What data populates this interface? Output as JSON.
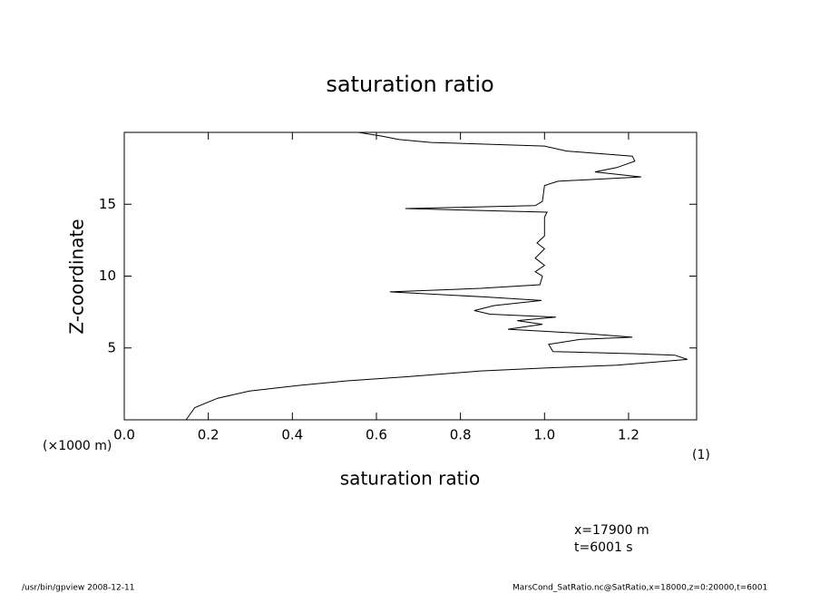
{
  "chart_data": {
    "type": "line",
    "title": "saturation ratio",
    "x_label": "saturation ratio",
    "y_label": "Z-coordinate",
    "y_unit": "(×1000 m)",
    "x_unit": "(1)",
    "annotations": [
      "x=17900 m",
      "t=6001 s"
    ],
    "footer_left": "/usr/bin/gpview   2008-12-11",
    "footer_right": "MarsCond_SatRatio.nc@SatRatio,x=18000,z=0:20000,t=6001",
    "xlim": [
      0,
      1.362
    ],
    "ylim": [
      0,
      20
    ],
    "xticks": [
      {
        "value": 0,
        "label": "0.0"
      },
      0.2,
      0.4,
      0.6,
      0.8,
      {
        "value": 1,
        "label": "1.0"
      },
      1.2
    ],
    "yticks": [
      5,
      10,
      15
    ],
    "series": [
      {
        "color": "#000000",
        "values": [
          0.147,
          0.168,
          0.222,
          0.298,
          0.417,
          0.525,
          0.676,
          0.848,
          1.0,
          1.172,
          1.34,
          1.31,
          1.215,
          1.02,
          1.01,
          1.086,
          1.209,
          1.097,
          0.913,
          0.995,
          0.935,
          1.027,
          0.87,
          0.833,
          0.88,
          0.993,
          0.859,
          0.632,
          0.848,
          0.989,
          0.995,
          0.978,
          1.0,
          0.978,
          1.0,
          0.982,
          1.0,
          1.0,
          1.006,
          0.669,
          0.978,
          0.995,
          1.0,
          1.032,
          1.23,
          1.12,
          1.172,
          1.215,
          1.209,
          1.053,
          1.0,
          0.73,
          0.654,
          0.611,
          0.557
        ],
        "z": [
          0,
          0.85,
          1.5,
          2.0,
          2.4,
          2.7,
          3.0,
          3.4,
          3.6,
          3.8,
          4.2,
          4.5,
          4.6,
          4.75,
          5.25,
          5.6,
          5.75,
          6.0,
          6.3,
          6.65,
          6.9,
          7.15,
          7.35,
          7.6,
          7.95,
          8.3,
          8.55,
          8.9,
          9.15,
          9.4,
          10.0,
          10.3,
          10.75,
          11.25,
          11.9,
          12.3,
          12.8,
          14.1,
          14.45,
          14.7,
          14.9,
          15.2,
          16.3,
          16.6,
          16.9,
          17.25,
          17.55,
          18.0,
          18.35,
          18.7,
          19.05,
          19.3,
          19.5,
          19.75,
          20.0
        ]
      }
    ]
  }
}
